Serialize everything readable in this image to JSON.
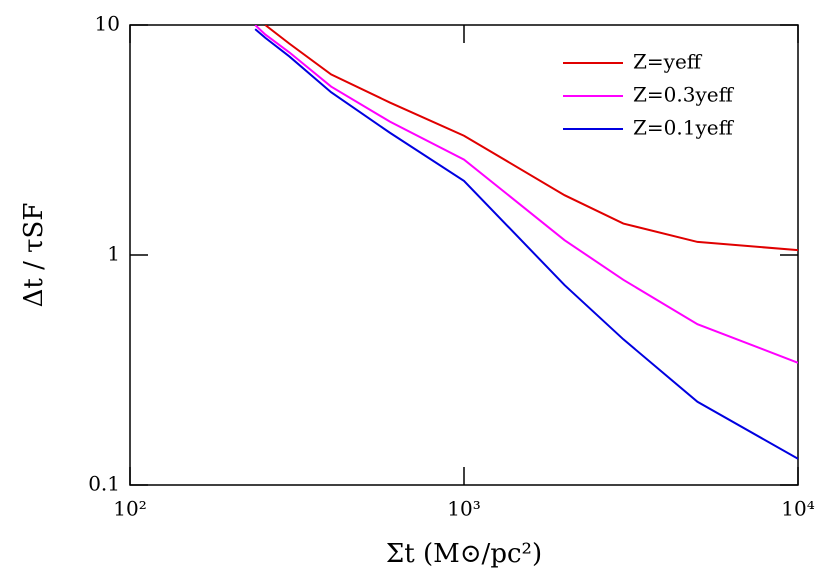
{
  "chart_data": {
    "type": "line",
    "xlabel": "Σt (M⊙/pc²)",
    "ylabel": "Δt / τSF",
    "x": [
      237,
      254,
      300,
      400,
      600,
      1000,
      2000,
      3000,
      5000,
      10000
    ],
    "series": [
      {
        "name": "Z=yeff",
        "color": "#e00000",
        "values": [
          null,
          10,
          8.3,
          6.1,
          4.6,
          3.3,
          1.82,
          1.37,
          1.14,
          1.05
        ]
      },
      {
        "name": "Z=0.3yeff",
        "color": "#ff00ff",
        "values": [
          10,
          9.1,
          7.6,
          5.4,
          3.8,
          2.6,
          1.16,
          0.78,
          0.5,
          0.34
        ]
      },
      {
        "name": "Z=0.1yeff",
        "color": "#0000e0",
        "values": [
          9.6,
          8.8,
          7.3,
          5.1,
          3.4,
          2.1,
          0.74,
          0.43,
          0.23,
          0.13
        ]
      }
    ],
    "xscale": "log",
    "yscale": "log",
    "xlim": [
      100,
      10000
    ],
    "ylim": [
      0.1,
      10
    ],
    "xticks": [
      {
        "value": 100,
        "label": "10²"
      },
      {
        "value": 1000,
        "label": "10³"
      },
      {
        "value": 10000,
        "label": "10⁴"
      }
    ],
    "yticks": [
      0.1,
      1,
      10
    ],
    "legend": "upper right"
  }
}
